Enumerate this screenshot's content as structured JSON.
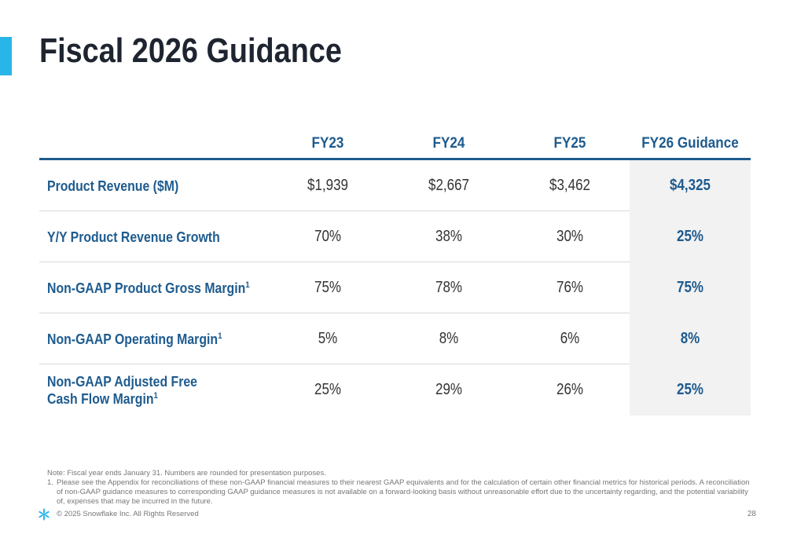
{
  "slide": {
    "title": "Fiscal 2026 Guidance",
    "accent_color": "#29b5e8",
    "text_color": "#1e5b8e"
  },
  "table": {
    "headers": [
      "FY23",
      "FY24",
      "FY25",
      "FY26 Guidance"
    ],
    "rows": [
      {
        "label": "Product Revenue ($M)",
        "label2": "",
        "sup": "",
        "values": [
          "$1,939",
          "$2,667",
          "$3,462",
          "$4,325"
        ]
      },
      {
        "label": "Y/Y Product Revenue Growth",
        "label2": "",
        "sup": "",
        "values": [
          "70%",
          "38%",
          "30%",
          "25%"
        ]
      },
      {
        "label": "Non-GAAP Product Gross Margin",
        "label2": "",
        "sup": "1",
        "values": [
          "75%",
          "78%",
          "76%",
          "75%"
        ]
      },
      {
        "label": "Non-GAAP Operating Margin",
        "label2": "",
        "sup": "1",
        "values": [
          "5%",
          "8%",
          "6%",
          "8%"
        ]
      },
      {
        "label": "Non-GAAP Adjusted Free",
        "label2": "Cash Flow Margin",
        "sup": "1",
        "values": [
          "25%",
          "29%",
          "26%",
          "25%"
        ]
      }
    ]
  },
  "notes": {
    "note": "Note: Fiscal year ends January 31. Numbers are rounded for presentation purposes.",
    "footnote_num": "1.",
    "footnote": "Please see the Appendix for reconciliations of these non-GAAP financial measures to their nearest GAAP equivalents and for the calculation of certain other financial metrics for historical periods. A reconciliation of non-GAAP guidance measures to corresponding GAAP guidance measures is not available on a forward-looking basis without unreasonable effort due to the uncertainty regarding, and the potential variability of, expenses that may be incurred in the future."
  },
  "footer": {
    "logo_icon": "snowflake-icon",
    "copyright": "© 2025 Snowflake Inc. All Rights Reserved",
    "page_number": "28"
  }
}
